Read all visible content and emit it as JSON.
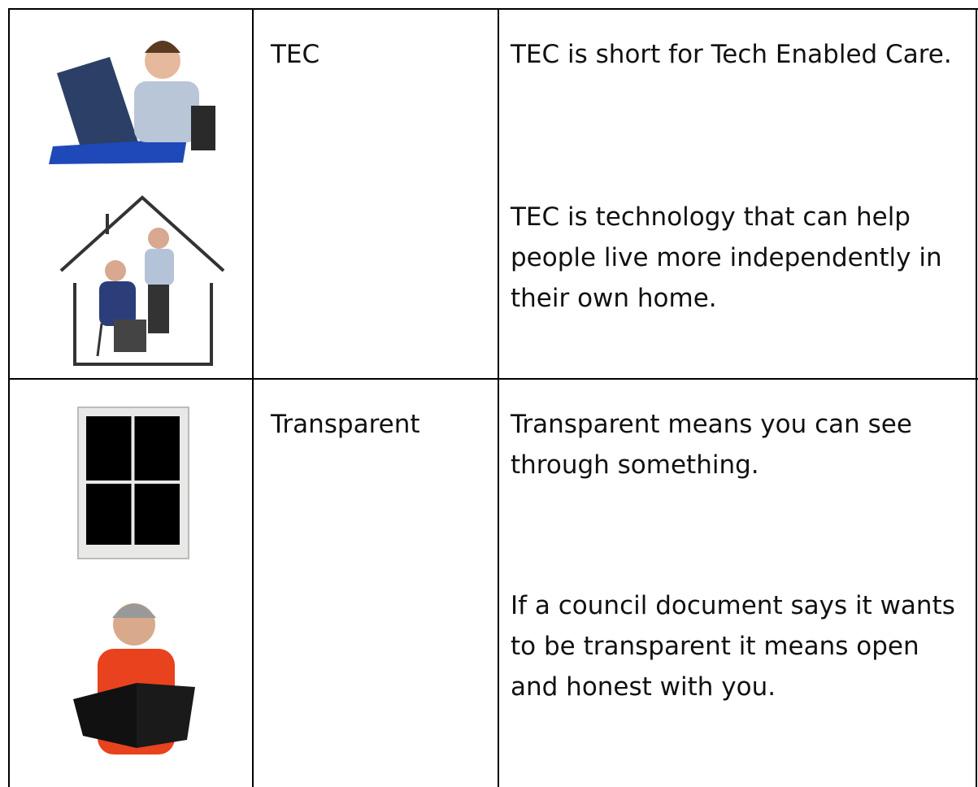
{
  "table": {
    "rows": [
      {
        "term": "TEC",
        "definitions": [
          "TEC is short for Tech Enabled Care.",
          "TEC is technology that can help people live more independently in their own home."
        ]
      },
      {
        "term": "Transparent",
        "definitions": [
          "Transparent means you can see through something.",
          "If a council document says it wants to be transparent it means open and honest with you."
        ]
      }
    ]
  }
}
